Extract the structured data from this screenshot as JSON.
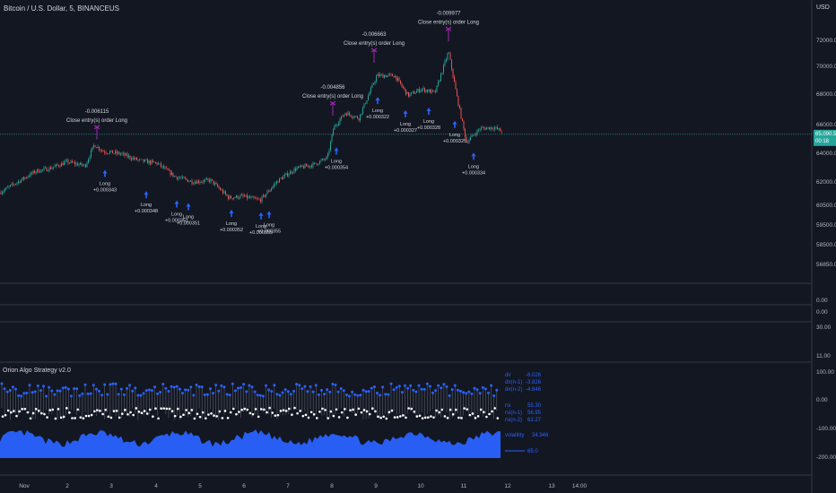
{
  "header": {
    "symbol": "Bitcoin / U.S. Dollar, 5, BINANCEUS",
    "currency": "USD"
  },
  "colors": {
    "background": "#131722",
    "grid": "#363a45",
    "candle_up": "#26a69a",
    "candle_down": "#ef5350",
    "price_line": "#26a69a",
    "signal_long": "#2962ff",
    "signal_close": "#9c27b0",
    "area": "#2962ff",
    "text": "#b2b5be"
  },
  "price_scale": {
    "ticks": [
      "72000.00",
      "70000.00",
      "68000.00",
      "66000.00",
      "64000.00",
      "62000.00",
      "60500.00",
      "59500.00",
      "58500.00",
      "56850.00"
    ],
    "last_price": "65,090.57",
    "last_sub": "00:18"
  },
  "middle_panes": [
    {
      "ticks": [
        "0.00",
        "0.00"
      ]
    },
    {
      "ticks": [
        "30.00"
      ]
    },
    {
      "ticks": [
        "11.00"
      ]
    }
  ],
  "chart_data": {
    "type": "candlestick",
    "title": "Bitcoin / U.S. Dollar, 5, BINANCEUS",
    "x_tick_labels": [
      "Nov",
      "2",
      "3",
      "4",
      "5",
      "6",
      "7",
      "8",
      "9",
      "10",
      "11",
      "12",
      "13",
      "14:00"
    ],
    "price_path": [
      [
        0,
        62900
      ],
      [
        20,
        63300
      ],
      [
        40,
        63700
      ],
      [
        55,
        63800
      ],
      [
        75,
        64050
      ],
      [
        95,
        63900
      ],
      [
        105,
        64700
      ],
      [
        115,
        64450
      ],
      [
        135,
        64350
      ],
      [
        155,
        64100
      ],
      [
        175,
        64000
      ],
      [
        195,
        63500
      ],
      [
        215,
        63300
      ],
      [
        235,
        63350
      ],
      [
        255,
        62700
      ],
      [
        270,
        62750
      ],
      [
        290,
        62600
      ],
      [
        310,
        63350
      ],
      [
        330,
        63800
      ],
      [
        350,
        63950
      ],
      [
        365,
        64200
      ],
      [
        372,
        65350
      ],
      [
        385,
        65900
      ],
      [
        400,
        65700
      ],
      [
        420,
        67300
      ],
      [
        440,
        67300
      ],
      [
        455,
        66550
      ],
      [
        470,
        66800
      ],
      [
        485,
        66650
      ],
      [
        500,
        68200
      ],
      [
        510,
        66400
      ],
      [
        520,
        64800
      ],
      [
        535,
        65300
      ],
      [
        550,
        65350
      ],
      [
        560,
        65200
      ]
    ],
    "long_signals": [
      {
        "label": "Long",
        "value": "+0.000343"
      },
      {
        "label": "Long",
        "value": "+0.000348"
      },
      {
        "label": "Long",
        "value": "+0.000351"
      },
      {
        "label": "Long",
        "value": "+0.000352"
      },
      {
        "label": "Long",
        "value": "+0.000355"
      },
      {
        "label": "Long",
        "value": "+0.000354"
      },
      {
        "label": "Long",
        "value": "+0.000322"
      },
      {
        "label": "Long",
        "value": "+0.000327"
      },
      {
        "label": "Long",
        "value": "+0.000328"
      },
      {
        "label": "Long",
        "value": "+0.000325"
      },
      {
        "label": "Long",
        "value": "+0.000334"
      }
    ],
    "close_signals": [
      {
        "value": "-0.006115",
        "text": "Close entry(s) order Long"
      },
      {
        "value": "-0.004856",
        "text": "Close entry(s) order Long"
      },
      {
        "value": "-0.006663",
        "text": "Close entry(s) order Long"
      },
      {
        "value": "-0.009977",
        "text": "Close entry(s) order Long"
      }
    ],
    "oscillator": {
      "ticks": [
        "100.00",
        "0.00",
        "-100.00",
        "-200.00"
      ],
      "ref_label": "65.0"
    }
  },
  "indicator": {
    "title": "Orion Algo Strategy v2.0",
    "stats": [
      {
        "label": "dir",
        "value": "-6.026"
      },
      {
        "label": "dir(n-1)",
        "value": "-3.826"
      },
      {
        "label": "dir(n-2)",
        "value": "-4.646"
      },
      {
        "label": "rsi",
        "value": "55.30"
      },
      {
        "label": "rsi(n-1)",
        "value": "56.95"
      },
      {
        "label": "rsi(n-2)",
        "value": "62.27"
      },
      {
        "label": "volatility",
        "value": "34.946"
      }
    ]
  }
}
